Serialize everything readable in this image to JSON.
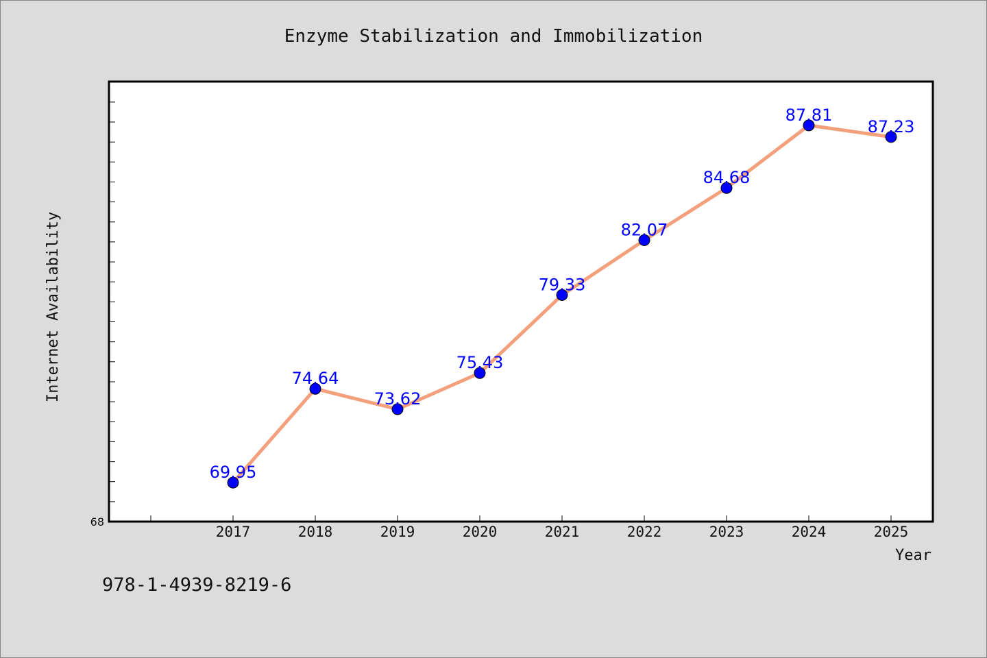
{
  "chart_data": {
    "type": "line",
    "title": "Enzyme Stabilization and Immobilization",
    "xlabel": "Year",
    "ylabel": "Internet Availability",
    "x": [
      "2017",
      "2018",
      "2019",
      "2020",
      "2021",
      "2022",
      "2023",
      "2024",
      "2025"
    ],
    "series": [
      {
        "values": [
          69.95,
          74.64,
          73.62,
          75.43,
          79.33,
          82.07,
          84.68,
          87.81,
          87.23
        ],
        "value_labels": [
          "69.95",
          "74.64",
          "73.62",
          "75.43",
          "79.33",
          "82.07",
          "84.68",
          "87.81",
          "87.23"
        ]
      }
    ],
    "y_tick_labels": [
      "68"
    ],
    "ylim": [
      68,
      90
    ],
    "grid": false,
    "legend": "none",
    "colors": {
      "line": "#f4a07c",
      "marker": "#0000ff",
      "data_label": "#0000ff",
      "plot_background": "#ffffff",
      "figure_background": "#dcdcdc"
    }
  },
  "footer": {
    "isbn": "978-1-4939-8219-6"
  }
}
